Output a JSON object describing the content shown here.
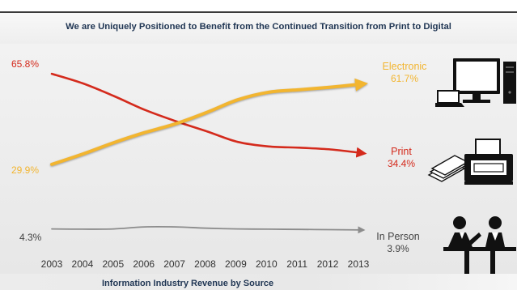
{
  "title": "We are Uniquely Positioned to Benefit from the Continued Transition from Print to Digital",
  "subtitle": "Information Industry Revenue by Source",
  "colors": {
    "print": "#d42a1c",
    "electronic": "#f2b530",
    "in_person": "#8c8c8c",
    "title": "#1f3553"
  },
  "icons": {
    "electronic": "computer-icon",
    "print": "printer-icon",
    "in_person": "customer-service-icon"
  },
  "chart_data": {
    "type": "line",
    "title": "Information Industry Revenue by Source",
    "x": [
      "2003",
      "2004",
      "2005",
      "2006",
      "2007",
      "2008",
      "2009",
      "2010",
      "2011",
      "2012",
      "2013"
    ],
    "ylim": [
      0,
      70
    ],
    "grid": false,
    "legend": "right",
    "series": [
      {
        "key": "print",
        "name": "Print",
        "values": [
          65.8,
          62.0,
          57.0,
          51.5,
          47.0,
          43.0,
          38.8,
          37.0,
          36.5,
          35.8,
          34.4
        ],
        "start_label": "65.8%",
        "end_label": "34.4%"
      },
      {
        "key": "electronic",
        "name": "Electronic",
        "values": [
          29.9,
          34.0,
          38.5,
          42.5,
          46.0,
          50.5,
          55.5,
          58.5,
          59.5,
          60.5,
          61.7
        ],
        "start_label": "29.9%",
        "end_label": "61.7%"
      },
      {
        "key": "in_person",
        "name": "In Person",
        "values": [
          4.3,
          4.2,
          4.3,
          5.1,
          5.1,
          4.6,
          4.3,
          4.2,
          4.1,
          4.0,
          3.9
        ],
        "start_label": "4.3%",
        "end_label": "3.9%"
      }
    ]
  }
}
